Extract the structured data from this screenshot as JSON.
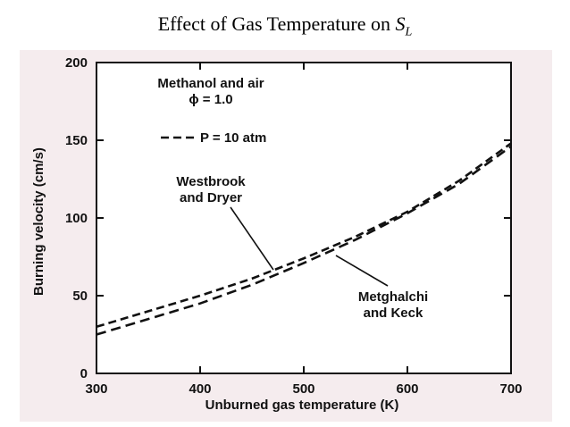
{
  "slide": {
    "title_prefix": "Effect of Gas Temperature on ",
    "title_symbol": "S",
    "title_subscript": "L"
  },
  "colors": {
    "background": "#f5ecee",
    "ink": "#111111"
  },
  "chart_data": {
    "type": "line",
    "xlabel": "Unburned gas temperature (K)",
    "ylabel": "Burning velocity (cm/s)",
    "xlim": [
      300,
      700
    ],
    "ylim": [
      0,
      200
    ],
    "xticks": [
      300,
      400,
      500,
      600,
      700
    ],
    "yticks": [
      0,
      50,
      100,
      150,
      200
    ],
    "grid": false,
    "annotations": {
      "mixture_line1": "Methanol and air",
      "mixture_line2": "ϕ = 1.0",
      "legend_pressure": "P = 10 atm",
      "series1_label_line1": "Westbrook",
      "series1_label_line2": "and Dryer",
      "series2_label_line1": "Metghalchi",
      "series2_label_line2": "and Keck"
    },
    "series": [
      {
        "name": "Westbrook and Dryer",
        "x": [
          300,
          350,
          400,
          450,
          500,
          550,
          600,
          650,
          700
        ],
        "y": [
          30,
          40,
          50,
          61,
          74,
          88,
          104,
          124,
          148
        ]
      },
      {
        "name": "Metghalchi and Keck",
        "x": [
          300,
          350,
          400,
          450,
          500,
          550,
          600,
          650,
          700
        ],
        "y": [
          25,
          35,
          45,
          57,
          71,
          86,
          103,
          122,
          146
        ]
      }
    ]
  }
}
